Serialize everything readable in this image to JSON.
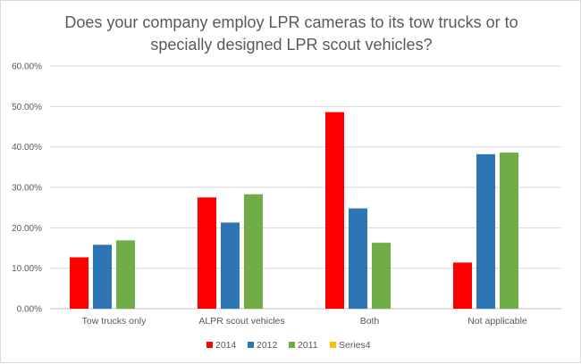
{
  "chart_data": {
    "type": "bar",
    "title_lines": [
      "Does your company employ LPR cameras to its tow trucks or to",
      "specially designed LPR scout vehicles?"
    ],
    "categories": [
      "Tow trucks only",
      "ALPR scout vehicles",
      "Both",
      "Not applicable"
    ],
    "series": [
      {
        "name": "2014",
        "color": "#ff0000",
        "values": [
          12.7,
          27.5,
          48.6,
          11.4
        ]
      },
      {
        "name": "2012",
        "color": "#2e75b6",
        "values": [
          15.8,
          21.3,
          24.8,
          38.2
        ]
      },
      {
        "name": "2011",
        "color": "#70ad47",
        "values": [
          16.9,
          28.3,
          16.3,
          38.6
        ]
      },
      {
        "name": "Series4",
        "color": "#ffc000",
        "values": [
          0,
          0,
          0,
          0
        ]
      }
    ],
    "yticks": [
      "0.00%",
      "10.00%",
      "20.00%",
      "30.00%",
      "40.00%",
      "50.00%",
      "60.00%"
    ],
    "ylim": [
      0,
      60
    ],
    "grid": true,
    "legend_position": "bottom",
    "xlabel": "",
    "ylabel": ""
  }
}
